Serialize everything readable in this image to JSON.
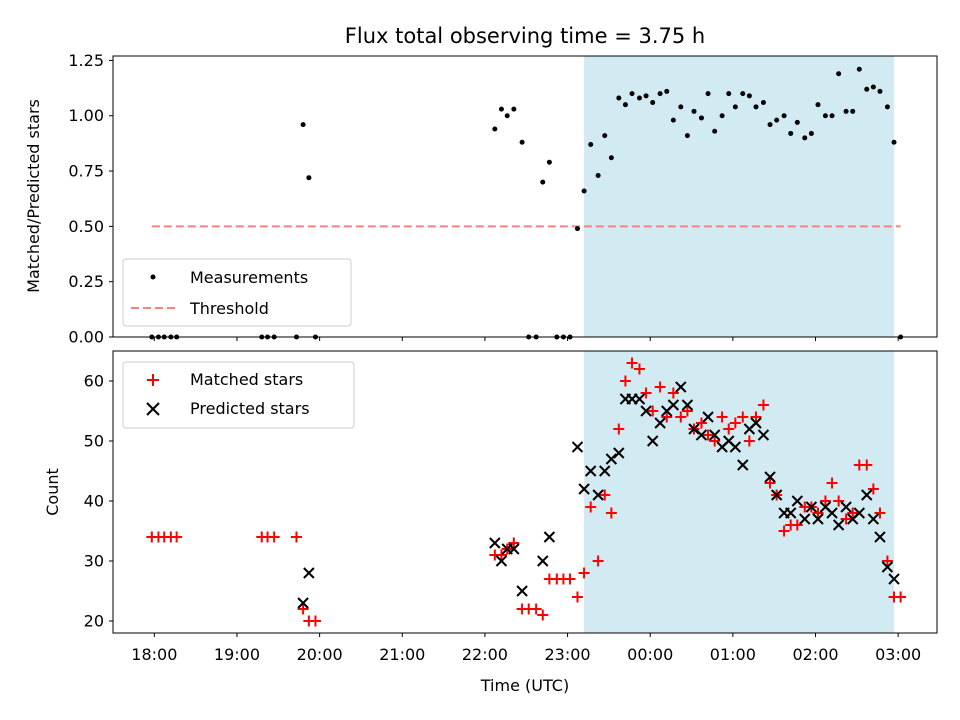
{
  "title": "Flux total observing time = 3.75 h",
  "xlabel": "Time (UTC)",
  "x_tick_labels": [
    "18:00",
    "19:00",
    "20:00",
    "21:00",
    "22:00",
    "23:00",
    "00:00",
    "01:00",
    "02:00",
    "03:00"
  ],
  "colors": {
    "shade": "#add8e6",
    "measurement": "#000000",
    "threshold": "#ff7f7f",
    "matched": "#ff0000",
    "predicted": "#000000"
  },
  "chart_data": [
    {
      "type": "scatter",
      "name": "ratio-panel",
      "ylabel": "Matched/Predicted stars",
      "ylim": [
        0,
        1.27
      ],
      "xlim_hours": [
        17.5,
        27.47
      ],
      "y_tick_labels": [
        "0.00",
        "0.25",
        "0.50",
        "0.75",
        "1.00",
        "1.25"
      ],
      "y_ticks": [
        0,
        0.25,
        0.5,
        0.75,
        1.0,
        1.25
      ],
      "shaded_range_hours": [
        23.2,
        26.95
      ],
      "legend": {
        "position": "lower-left",
        "entries": [
          "Measurements",
          "Threshold"
        ]
      },
      "threshold": {
        "label": "Threshold",
        "value": 0.5,
        "x_range_hours": [
          17.97,
          27.03
        ]
      },
      "series": [
        {
          "name": "Measurements",
          "x_hours": [
            17.97,
            18.05,
            18.12,
            18.2,
            18.27,
            19.3,
            19.37,
            19.45,
            19.72,
            19.8,
            19.87,
            19.95,
            22.12,
            22.2,
            22.27,
            22.35,
            22.45,
            22.53,
            22.62,
            22.7,
            22.78,
            22.87,
            22.95,
            23.03,
            23.12,
            23.2,
            23.28,
            23.37,
            23.45,
            23.53,
            23.62,
            23.7,
            23.78,
            23.87,
            23.95,
            24.03,
            24.12,
            24.2,
            24.28,
            24.37,
            24.45,
            24.53,
            24.62,
            24.7,
            24.78,
            24.87,
            24.95,
            25.03,
            25.12,
            25.2,
            25.28,
            25.37,
            25.45,
            25.53,
            25.62,
            25.7,
            25.78,
            25.87,
            25.95,
            26.03,
            26.12,
            26.2,
            26.28,
            26.37,
            26.45,
            26.53,
            26.62,
            26.7,
            26.78,
            26.87,
            26.95,
            27.03
          ],
          "y": [
            0,
            0,
            0,
            0,
            0,
            0,
            0,
            0,
            0,
            0.96,
            0.72,
            0,
            0.94,
            1.03,
            1.0,
            1.03,
            0.88,
            0,
            0,
            0.7,
            0.79,
            0,
            0,
            0,
            0.49,
            0.66,
            0.87,
            0.73,
            0.91,
            0.81,
            1.08,
            1.05,
            1.1,
            1.08,
            1.09,
            1.06,
            1.1,
            1.11,
            0.98,
            1.04,
            0.91,
            1.02,
            0.99,
            1.1,
            0.93,
            1.0,
            1.1,
            1.04,
            1.1,
            1.09,
            1.04,
            1.06,
            0.96,
            0.98,
            1.0,
            0.92,
            0.97,
            0.9,
            0.92,
            1.05,
            1.0,
            1.0,
            1.19,
            1.02,
            1.02,
            1.21,
            1.12,
            1.13,
            1.11,
            1.04,
            0.88,
            0
          ]
        }
      ]
    },
    {
      "type": "scatter",
      "name": "count-panel",
      "ylabel": "Count",
      "ylim": [
        18,
        65
      ],
      "xlim_hours": [
        17.5,
        27.47
      ],
      "y_tick_labels": [
        "20",
        "30",
        "40",
        "50",
        "60"
      ],
      "y_ticks": [
        20,
        30,
        40,
        50,
        60
      ],
      "shaded_range_hours": [
        23.2,
        26.95
      ],
      "legend": {
        "position": "upper-left",
        "entries": [
          "Matched stars",
          "Predicted stars"
        ]
      },
      "series": [
        {
          "name": "Matched stars",
          "x_hours": [
            17.97,
            18.05,
            18.12,
            18.2,
            18.27,
            19.3,
            19.37,
            19.45,
            19.72,
            19.8,
            19.87,
            19.95,
            22.12,
            22.2,
            22.27,
            22.35,
            22.45,
            22.53,
            22.62,
            22.7,
            22.78,
            22.87,
            22.95,
            23.03,
            23.12,
            23.2,
            23.28,
            23.37,
            23.45,
            23.53,
            23.62,
            23.7,
            23.78,
            23.87,
            23.95,
            24.03,
            24.12,
            24.2,
            24.28,
            24.37,
            24.45,
            24.53,
            24.62,
            24.7,
            24.78,
            24.87,
            24.95,
            25.03,
            25.12,
            25.2,
            25.28,
            25.37,
            25.45,
            25.53,
            25.62,
            25.7,
            25.78,
            25.87,
            25.95,
            26.03,
            26.12,
            26.2,
            26.28,
            26.37,
            26.45,
            26.53,
            26.62,
            26.7,
            26.78,
            26.87,
            26.95,
            27.03
          ],
          "y": [
            34,
            34,
            34,
            34,
            34,
            34,
            34,
            34,
            34,
            22,
            20,
            20,
            31,
            31,
            32,
            33,
            22,
            22,
            22,
            21,
            27,
            27,
            27,
            27,
            24,
            28,
            39,
            30,
            41,
            38,
            52,
            60,
            63,
            62,
            58,
            55,
            59,
            54,
            58,
            54,
            55,
            52,
            53,
            51,
            50,
            54,
            52,
            53,
            54,
            50,
            54,
            56,
            43,
            41,
            35,
            36,
            36,
            39,
            39,
            38,
            40,
            43,
            40,
            37,
            38,
            46,
            46,
            42,
            38,
            30,
            24,
            24
          ]
        },
        {
          "name": "Predicted stars",
          "x_hours": [
            19.8,
            19.87,
            22.12,
            22.2,
            22.27,
            22.35,
            22.45,
            22.7,
            22.78,
            23.12,
            23.2,
            23.28,
            23.37,
            23.45,
            23.53,
            23.62,
            23.7,
            23.78,
            23.87,
            23.95,
            24.03,
            24.12,
            24.2,
            24.28,
            24.37,
            24.45,
            24.53,
            24.62,
            24.7,
            24.78,
            24.87,
            24.95,
            25.03,
            25.12,
            25.2,
            25.28,
            25.37,
            25.45,
            25.53,
            25.62,
            25.7,
            25.78,
            25.87,
            25.95,
            26.03,
            26.12,
            26.2,
            26.28,
            26.37,
            26.45,
            26.53,
            26.62,
            26.7,
            26.78,
            26.87,
            26.95
          ],
          "y": [
            23,
            28,
            33,
            30,
            32,
            32,
            25,
            30,
            34,
            49,
            42,
            45,
            41,
            45,
            47,
            48,
            57,
            57,
            57,
            55,
            50,
            53,
            55,
            56,
            59,
            56,
            52,
            51,
            54,
            51,
            49,
            50,
            49,
            46,
            52,
            53,
            51,
            44,
            41,
            38,
            38,
            40,
            37,
            39,
            37,
            39,
            38,
            36,
            39,
            37,
            38,
            41,
            37,
            34,
            29,
            27
          ]
        }
      ]
    }
  ]
}
